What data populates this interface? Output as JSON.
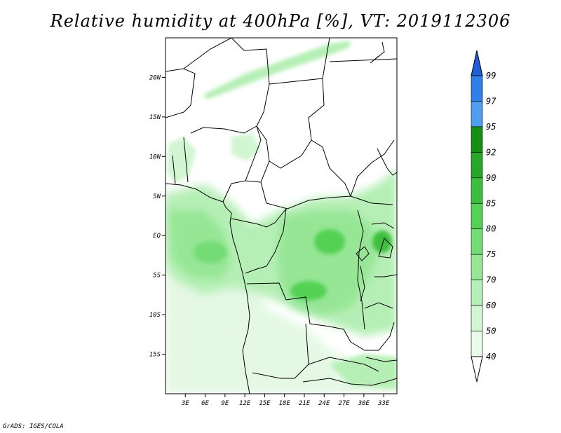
{
  "title": "Relative humidity at 400hPa [%], VT: 2019112306",
  "credit": "GrADS: IGES/COLA",
  "map": {
    "lat_labels": [
      "20N",
      "15N",
      "10N",
      "5N",
      "EQ",
      "5S",
      "10S",
      "15S"
    ],
    "lat_values": [
      20,
      15,
      10,
      5,
      0,
      -5,
      -10,
      -15
    ],
    "lon_labels": [
      "3E",
      "6E",
      "9E",
      "12E",
      "15E",
      "18E",
      "21E",
      "24E",
      "27E",
      "30E",
      "33E"
    ],
    "lon_values": [
      3,
      6,
      9,
      12,
      15,
      18,
      21,
      24,
      27,
      30,
      33
    ],
    "lon_range": [
      0,
      35
    ],
    "lat_range": [
      -20,
      25
    ]
  },
  "colorbar": {
    "labels": [
      "99",
      "97",
      "95",
      "92",
      "90",
      "85",
      "80",
      "75",
      "70",
      "60",
      "50",
      "40"
    ],
    "colors": [
      "#1f5fd6",
      "#2f7fe8",
      "#4f9ff0",
      "#128f12",
      "#26a826",
      "#3cbf3c",
      "#52d152",
      "#74dc74",
      "#96e696",
      "#b6efb6",
      "#d2f6d2",
      "#ebfbeb",
      "#ffffff"
    ]
  }
}
